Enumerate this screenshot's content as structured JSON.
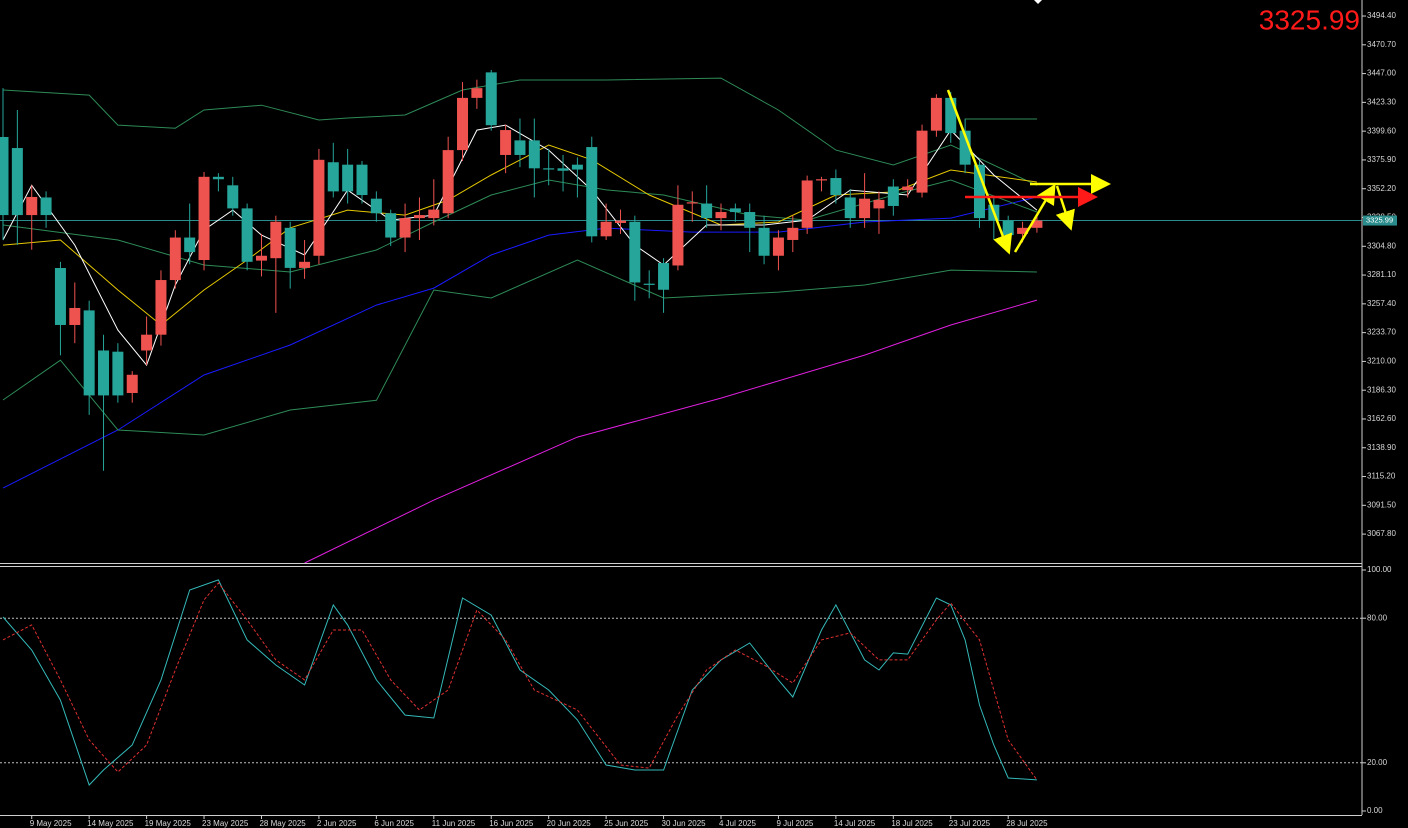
{
  "chart_data": [
    {
      "type": "candlestick",
      "categories": [
        null,
        null,
        "9 May 2025",
        null,
        null,
        null,
        "14 May 2025",
        null,
        null,
        null,
        "19 May 2025",
        null,
        null,
        null,
        "23 May 2025",
        null,
        null,
        null,
        "28 May 2025",
        null,
        null,
        null,
        "2 Jun 2025",
        null,
        null,
        null,
        "6 Jun 2025",
        null,
        null,
        null,
        "11 Jun 2025",
        null,
        null,
        null,
        "16 Jun 2025",
        null,
        null,
        null,
        "20 Jun 2025",
        null,
        null,
        null,
        "25 Jun 2025",
        null,
        null,
        null,
        "30 Jun 2025",
        null,
        null,
        null,
        "4 Jul 2025",
        null,
        null,
        null,
        "9 Jul 2025",
        null,
        null,
        null,
        "14 Jul 2025",
        null,
        null,
        null,
        "18 Jul 2025",
        null,
        null,
        null,
        "23 Jul 2025",
        null,
        null,
        null,
        "28 Jul 2025",
        null,
        null
      ],
      "open": [
        3394.8,
        3385.7,
        3330.5,
        3345,
        3286.9,
        3240,
        3252,
        3219,
        3218,
        3184,
        3219,
        3232,
        3277,
        3312,
        3293.5,
        3362,
        3355,
        3336,
        3293,
        3295,
        3320,
        3287,
        3297,
        3374,
        3372,
        3372,
        3344,
        3332,
        3312,
        3328,
        3328,
        3332,
        3384,
        3427,
        3448,
        3380,
        3392,
        3392,
        3369,
        3369,
        3372,
        3386.5,
        3313,
        3324,
        3325,
        3274,
        3291,
        3289,
        3340,
        3340,
        3328,
        3336,
        3333,
        3320,
        3297,
        3310,
        3320,
        3359,
        3361,
        3345,
        3328,
        3336,
        3354,
        3351,
        3349,
        3400,
        3427,
        3400,
        3372,
        3339,
        3326,
        3315,
        3320
      ],
      "high": [
        3435,
        3417,
        3355,
        3350,
        3292,
        3275,
        3260,
        3232,
        3225,
        3202,
        3247,
        3285,
        3318,
        3340,
        3366,
        3365,
        3362,
        3340,
        3315,
        3330,
        3325,
        3310,
        3385,
        3390,
        3385,
        3375,
        3350,
        3335,
        3340,
        3345,
        3360,
        3395,
        3440,
        3442,
        3450,
        3405,
        3410,
        3410,
        3385,
        3380,
        3378,
        3395,
        3340,
        3335,
        3330,
        3285,
        3295,
        3355,
        3350,
        3355,
        3340,
        3340,
        3340,
        3330,
        3318,
        3330,
        3363,
        3362,
        3368,
        3352,
        3365,
        3350,
        3360,
        3360,
        3405,
        3430,
        3432,
        3410,
        3375,
        3345,
        3330,
        3325,
        3330
      ],
      "low": [
        3310,
        3306,
        3302,
        3320,
        3215,
        3225,
        3166,
        3120,
        3176,
        3176,
        3207,
        3223,
        3270,
        3290,
        3285,
        3350,
        3330,
        3285,
        3280,
        3250,
        3270,
        3278,
        3290,
        3345,
        3340,
        3340,
        3325,
        3305,
        3300,
        3310,
        3322,
        3328,
        3375,
        3418,
        3400,
        3365,
        3370,
        3345,
        3355,
        3350,
        3345,
        3308,
        3310,
        3315,
        3260,
        3262,
        3250,
        3285,
        3325,
        3320,
        3318,
        3325,
        3300,
        3290,
        3285,
        3300,
        3315,
        3350,
        3340,
        3320,
        3320,
        3315,
        3330,
        3345,
        3345,
        3395,
        3390,
        3365,
        3320,
        3310,
        3305,
        3308,
        3316
      ],
      "close": [
        3330.5,
        3330.5,
        3345.4,
        3330.5,
        3240,
        3254,
        3182,
        3182,
        3182,
        3199,
        3232,
        3277,
        3312,
        3300,
        3362,
        3360,
        3336,
        3292,
        3297,
        3325,
        3287,
        3292,
        3376,
        3350,
        3350,
        3347,
        3332,
        3312,
        3328,
        3330.5,
        3335,
        3384,
        3427,
        3435,
        3404.5,
        3400.5,
        3380,
        3369,
        3368,
        3367,
        3368,
        3313,
        3325,
        3326,
        3275,
        3273,
        3269,
        3339,
        3341,
        3328,
        3333,
        3333,
        3320,
        3297,
        3312,
        3320,
        3359,
        3360,
        3347,
        3328,
        3344,
        3343,
        3338,
        3354,
        3400,
        3427,
        3398,
        3372,
        3328,
        3326,
        3314,
        3320,
        3325.99
      ],
      "up_color": "#ef5350",
      "down_color": "#26a69a",
      "last_price": 3325.99,
      "ylim": [
        3044,
        3507.6
      ],
      "yticks": [
        {
          "value": 3494.4,
          "label": "3494.40"
        },
        {
          "value": 3470.7,
          "label": "3470.70"
        },
        {
          "value": 3447,
          "label": "3447.00"
        },
        {
          "value": 3423.3,
          "label": "3423.30"
        },
        {
          "value": 3399.6,
          "label": "3399.60"
        },
        {
          "value": 3375.9,
          "label": "3375.90"
        },
        {
          "value": 3352.2,
          "label": "3352.20"
        },
        {
          "value": 3328.5,
          "label": "3328.50"
        },
        {
          "value": 3304.8,
          "label": "3304.80"
        },
        {
          "value": 3281.1,
          "label": "3281.10"
        },
        {
          "value": 3257.4,
          "label": "3257.40"
        },
        {
          "value": 3233.7,
          "label": "3233.70"
        },
        {
          "value": 3210,
          "label": "3210.00"
        },
        {
          "value": 3186.3,
          "label": "3186.30"
        },
        {
          "value": 3162.6,
          "label": "3162.60"
        },
        {
          "value": 3138.9,
          "label": "3138.90"
        },
        {
          "value": 3115.2,
          "label": "3115.20"
        },
        {
          "value": 3091.5,
          "label": "3091.50"
        },
        {
          "value": 3067.8,
          "label": "3067.80"
        }
      ],
      "series": [
        {
          "color": "#1a1aff",
          "x": [
            0,
            8,
            14,
            20,
            26,
            30,
            34,
            38,
            42,
            48,
            54,
            60,
            66,
            72
          ],
          "values": [
            3105.7,
            3153.5,
            3198.8,
            3223.5,
            3256.4,
            3270.4,
            3297.6,
            3314,
            3319.8,
            3316.5,
            3316.5,
            3324.8,
            3328,
            3345.4
          ]
        },
        {
          "color": "#e020e0",
          "x": [
            21,
            30,
            40,
            50,
            60,
            66,
            72
          ],
          "values": [
            3044,
            3095.8,
            3147.7,
            3179.8,
            3215.2,
            3240,
            3260.5
          ]
        },
        {
          "color": "#2e8b57",
          "x": [
            0,
            6,
            8,
            12,
            14,
            18,
            22,
            24,
            28,
            32,
            36,
            42,
            50,
            54,
            58,
            62,
            66,
            72
          ],
          "values": [
            3433.5,
            3429.3,
            3404.6,
            3402,
            3417,
            3421,
            3408.8,
            3410.4,
            3412.9,
            3433.5,
            3441.7,
            3441.7,
            3443.3,
            3417,
            3384,
            3371.7,
            3388.2,
            3355
          ]
        },
        {
          "color": "#2e8b57",
          "x": [
            0,
            8,
            14,
            20,
            26,
            30,
            34,
            38,
            42,
            46,
            52,
            56,
            62,
            66,
            72
          ],
          "values": [
            3322.3,
            3310,
            3289.4,
            3283.6,
            3301.7,
            3324.8,
            3347,
            3359.4,
            3351.2,
            3347,
            3330.5,
            3326.4,
            3347,
            3359.4,
            3333
          ]
        },
        {
          "color": "#2e8b57",
          "x": [
            0,
            4,
            8,
            14,
            20,
            26,
            30,
            34,
            40,
            46,
            54,
            60,
            66,
            72
          ],
          "values": [
            3178.2,
            3211,
            3153.5,
            3149.4,
            3170,
            3178,
            3268.8,
            3262.2,
            3293.5,
            3262.2,
            3267.1,
            3272.9,
            3285.2,
            3283.6
          ]
        },
        {
          "color": "#e6c800",
          "x": [
            0,
            4,
            8,
            11,
            14,
            17,
            20,
            24,
            28,
            31,
            34,
            38,
            41,
            45,
            50,
            54,
            58,
            62,
            66,
            72
          ],
          "values": [
            3305.8,
            3310,
            3268.8,
            3240,
            3268.8,
            3293.5,
            3320,
            3334.6,
            3330.5,
            3342.9,
            3363.5,
            3388.2,
            3376,
            3347,
            3322.3,
            3324.8,
            3347,
            3349.5,
            3367.6,
            3357.7
          ]
        },
        {
          "color": "#ffffff",
          "x": [
            0,
            2,
            5,
            8,
            10,
            12,
            14,
            16,
            18,
            21,
            24,
            27,
            30,
            33,
            35,
            38,
            41,
            44,
            46,
            49,
            53,
            56,
            59,
            63,
            66,
            69,
            72
          ],
          "values": [
            3310,
            3355,
            3305.8,
            3235.8,
            3207,
            3272.9,
            3318.2,
            3334.6,
            3314,
            3297.6,
            3351.1,
            3326.4,
            3330.5,
            3400.5,
            3404.6,
            3384,
            3351.1,
            3305.8,
            3289.4,
            3322.3,
            3322.3,
            3326.4,
            3351.1,
            3347,
            3400.5,
            3363.5,
            3334.6
          ]
        }
      ]
    },
    {
      "type": "line",
      "ylim": [
        0,
        100
      ],
      "yticks": [
        {
          "value": 100,
          "label": "100.00"
        },
        {
          "value": 80,
          "label": "80.00"
        },
        {
          "value": 20,
          "label": "20.00"
        },
        {
          "value": 0,
          "label": "0.00"
        }
      ],
      "series": [
        {
          "color": "#35b9b9",
          "dash": false,
          "x": [
            0,
            2,
            4,
            6,
            7,
            9,
            11,
            13,
            15,
            17,
            19,
            21,
            23,
            24,
            26,
            28,
            30,
            32,
            34,
            36,
            38,
            40,
            42,
            44,
            46,
            48,
            50,
            52,
            54,
            55,
            57,
            58,
            60,
            61,
            62,
            63,
            65,
            66,
            67,
            68,
            69,
            70,
            72
          ],
          "values": [
            80.5,
            66.8,
            46,
            10.8,
            17,
            27.4,
            54.4,
            91.7,
            95.9,
            71,
            60.6,
            52.3,
            85.5,
            77.2,
            54.4,
            39.8,
            38.6,
            88.4,
            81.3,
            58.5,
            50.2,
            37.8,
            19.1,
            17,
            17,
            50.2,
            62.7,
            69.7,
            54.4,
            47.3,
            75.1,
            85.5,
            62.7,
            58.5,
            65.6,
            65.1,
            88.4,
            85.5,
            71,
            44,
            27.4,
            13.7,
            12.9
          ]
        },
        {
          "color": "#e03030",
          "dash": true,
          "x": [
            0,
            2,
            4,
            6,
            8,
            10,
            12,
            14,
            15,
            17,
            19,
            21,
            23,
            25,
            27,
            29,
            31,
            33,
            35,
            37,
            40,
            43,
            45,
            47,
            49,
            51,
            53,
            55,
            57,
            59,
            61,
            63,
            65,
            66,
            68,
            69,
            70,
            71,
            72
          ],
          "values": [
            71,
            77.2,
            54.4,
            29.5,
            16.2,
            27.4,
            58.5,
            87.6,
            94.6,
            79.3,
            62.7,
            54.4,
            75.1,
            75.1,
            54.4,
            41.9,
            50.2,
            83.4,
            71,
            50.2,
            41.9,
            19.1,
            17.8,
            39.8,
            58.5,
            66.8,
            60.6,
            53.1,
            71,
            73.9,
            62.7,
            62.7,
            79.3,
            86.3,
            71,
            50.2,
            29.5,
            21.2,
            12.9
          ]
        }
      ]
    }
  ]
}
